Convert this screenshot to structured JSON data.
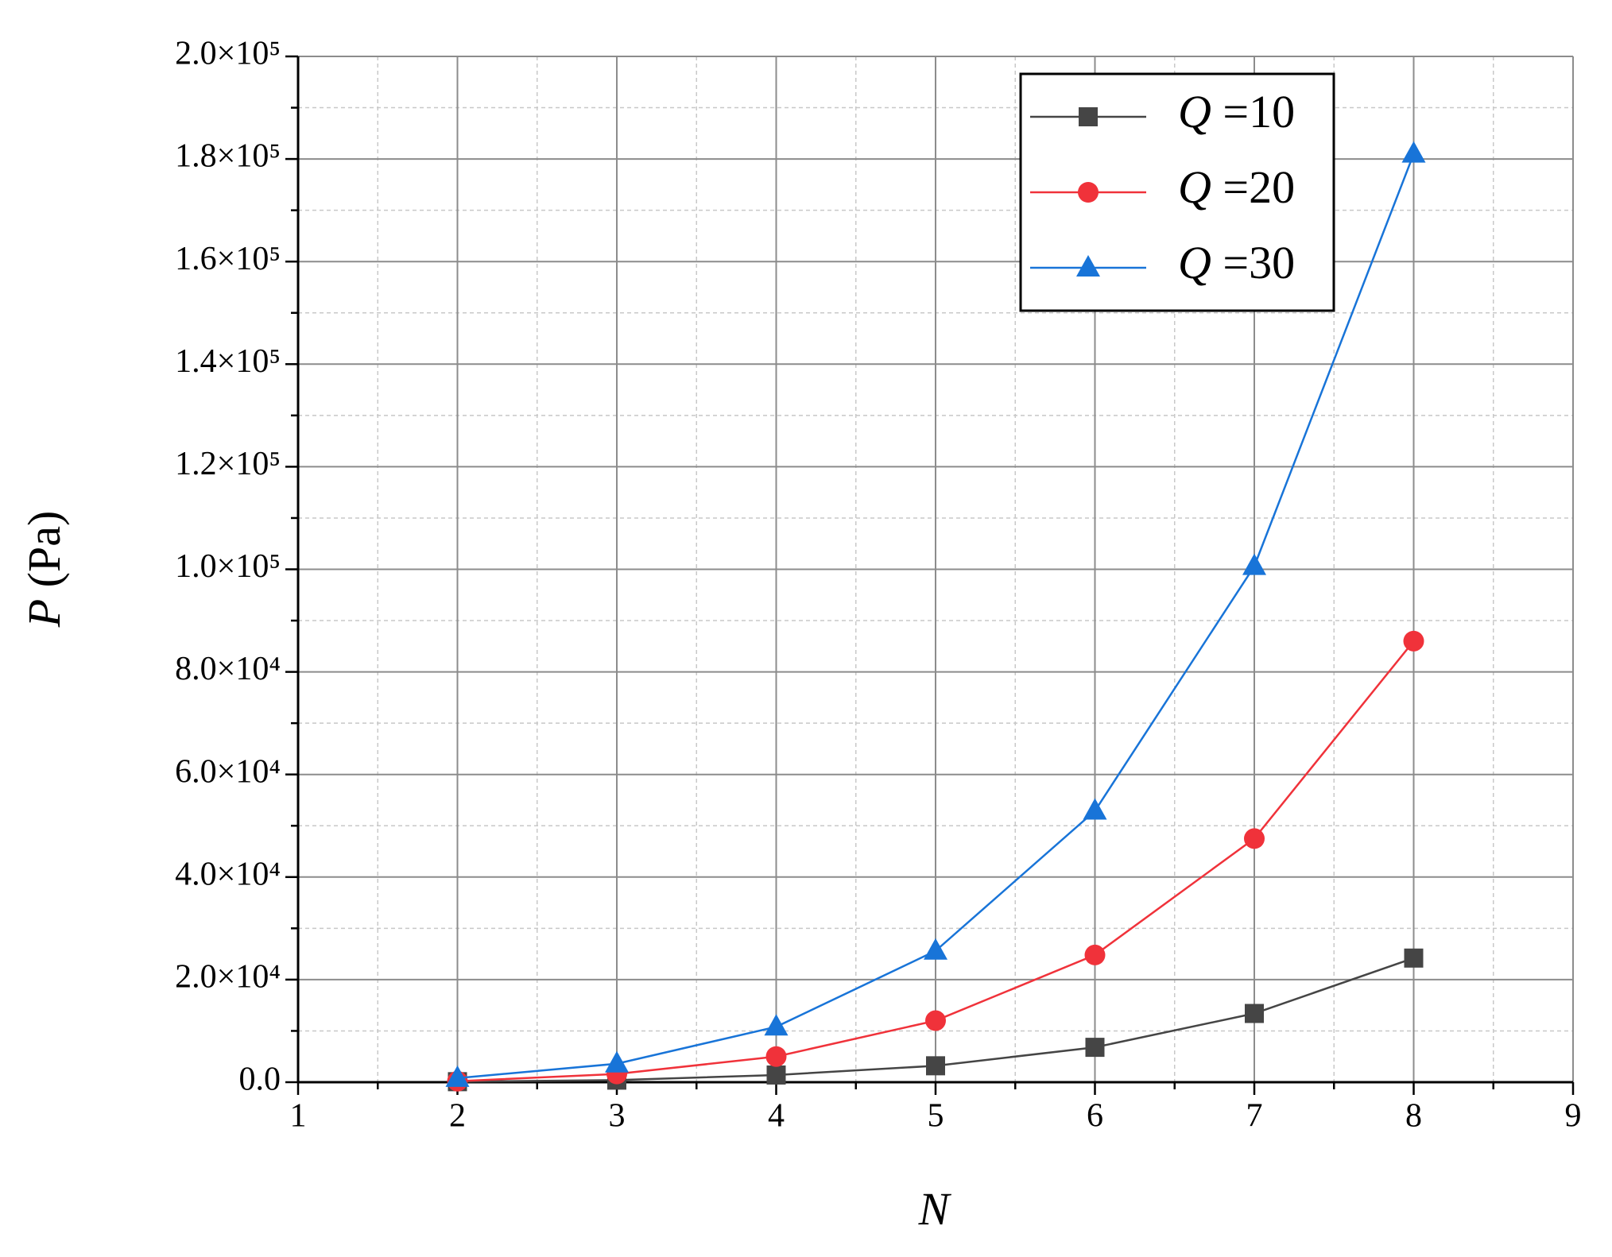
{
  "chart_data": {
    "type": "line",
    "x_label": "N",
    "y_label": "P (Pa)",
    "x": [
      2,
      3,
      4,
      5,
      6,
      7,
      8
    ],
    "series": [
      {
        "name": "Q =10",
        "color": "#454545",
        "marker": "square",
        "values": [
          100,
          400,
          1400,
          3200,
          6800,
          13400,
          24200
        ]
      },
      {
        "name": "Q =20",
        "color": "#f0323a",
        "marker": "circle",
        "values": [
          200,
          1600,
          5000,
          12000,
          24800,
          47500,
          86000
        ]
      },
      {
        "name": "Q =30",
        "color": "#1874d8",
        "marker": "triangle",
        "values": [
          800,
          3600,
          10800,
          25600,
          52900,
          100600,
          181000
        ]
      }
    ],
    "xlim": [
      1,
      9
    ],
    "xticks": [
      1,
      2,
      3,
      4,
      5,
      6,
      7,
      8,
      9
    ],
    "ylim": [
      0,
      200000
    ],
    "yticks": [
      {
        "value": 0,
        "label": "0.0"
      },
      {
        "value": 20000,
        "label": "2.0×10⁴"
      },
      {
        "value": 40000,
        "label": "4.0×10⁴"
      },
      {
        "value": 60000,
        "label": "6.0×10⁴"
      },
      {
        "value": 80000,
        "label": "8.0×10⁴"
      },
      {
        "value": 100000,
        "label": "1.0×10⁵"
      },
      {
        "value": 120000,
        "label": "1.2×10⁵"
      },
      {
        "value": 140000,
        "label": "1.4×10⁵"
      },
      {
        "value": 160000,
        "label": "1.6×10⁵"
      },
      {
        "value": 180000,
        "label": "1.8×10⁵"
      },
      {
        "value": 200000,
        "label": "2.0×10⁵"
      }
    ],
    "grid": true,
    "legend_position": "upper-right"
  }
}
